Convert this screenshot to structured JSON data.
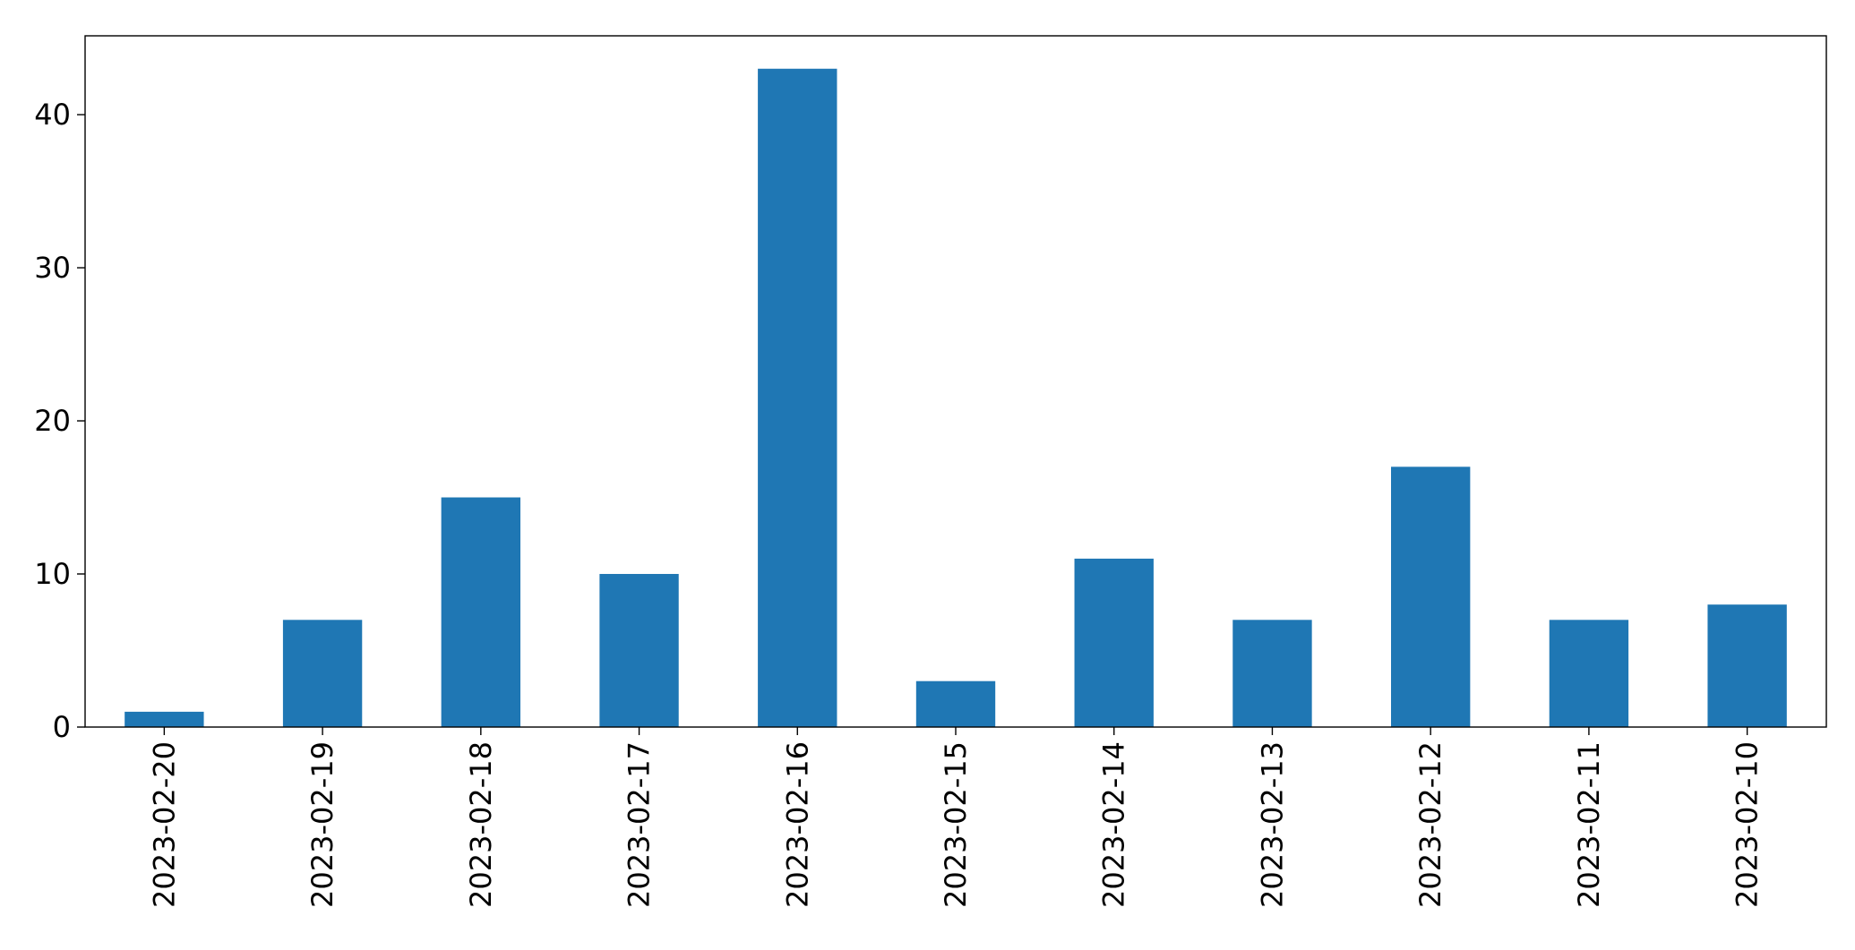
{
  "colors": {
    "bar": "#1f77b4",
    "axis": "#000000",
    "background": "#ffffff"
  },
  "chart_data": {
    "type": "bar",
    "title": "",
    "xlabel": "",
    "ylabel": "",
    "categories": [
      "2023-02-20",
      "2023-02-19",
      "2023-02-18",
      "2023-02-17",
      "2023-02-16",
      "2023-02-15",
      "2023-02-14",
      "2023-02-13",
      "2023-02-12",
      "2023-02-11",
      "2023-02-10"
    ],
    "values": [
      1,
      7,
      15,
      10,
      43,
      3,
      11,
      7,
      17,
      7,
      8
    ],
    "ylim": [
      0,
      45.15
    ],
    "yticks": [
      0,
      10,
      20,
      30,
      40
    ],
    "x_tick_rotation": "vertical",
    "grid": false,
    "legend": "none"
  }
}
